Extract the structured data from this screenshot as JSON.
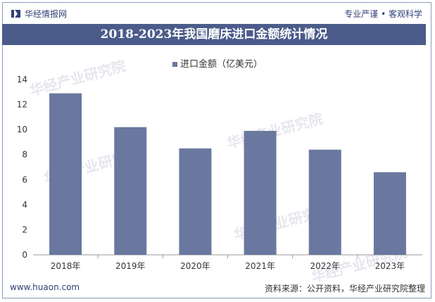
{
  "header": {
    "brand": "华经情报网",
    "slogan": "专业严谨 • 客观科学"
  },
  "title": "2018-2023年我国磨床进口金额统计情况",
  "footer": {
    "website": "www.huaon.com",
    "source": "资料来源：公开资料，华经产业研究院整理"
  },
  "watermark": {
    "text": "华经产业研究院",
    "url": "www.huaon.com"
  },
  "colors": {
    "title_band": "#4b5b8a",
    "bar": "#6a789f",
    "brand_text": "#2f3f75"
  },
  "chart_data": {
    "type": "bar",
    "categories": [
      "2018年",
      "2019年",
      "2020年",
      "2021年",
      "2022年",
      "2023年"
    ],
    "series": [
      {
        "name": "进口金额（亿美元）",
        "values": [
          12.9,
          10.2,
          8.5,
          9.9,
          8.4,
          6.6
        ]
      }
    ],
    "ylim": [
      0,
      14
    ],
    "yticks": [
      0,
      2,
      4,
      6,
      8,
      10,
      12,
      14
    ],
    "grid": false,
    "legend_position": "top-center"
  }
}
